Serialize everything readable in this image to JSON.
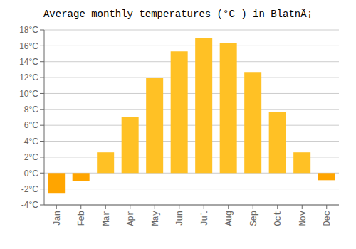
{
  "chart_data": {
    "type": "bar",
    "title": "Average monthly temperatures (°C ) in BlatnÃ¡",
    "categories": [
      "Jan",
      "Feb",
      "Mar",
      "Apr",
      "May",
      "Jun",
      "Jul",
      "Aug",
      "Sep",
      "Oct",
      "Nov",
      "Dec"
    ],
    "values": [
      -2.5,
      -1.0,
      2.6,
      7.0,
      12.0,
      15.3,
      17.0,
      16.3,
      12.7,
      7.7,
      2.6,
      -0.9
    ],
    "colors": [
      "#FFA500",
      "#FFA500",
      "#FFC125",
      "#FFC125",
      "#FFC125",
      "#FFC125",
      "#FFC125",
      "#FFC125",
      "#FFC125",
      "#FFC125",
      "#FFC125",
      "#FFA500"
    ],
    "ylim": [
      -4,
      18
    ],
    "yticks": [
      {
        "value": -4,
        "label": "-4°C"
      },
      {
        "value": -2,
        "label": "-2°C"
      },
      {
        "value": 0,
        "label": "0°C"
      },
      {
        "value": 2,
        "label": "2°C"
      },
      {
        "value": 4,
        "label": "4°C"
      },
      {
        "value": 6,
        "label": "6°C"
      },
      {
        "value": 8,
        "label": "8°C"
      },
      {
        "value": 10,
        "label": "10°C"
      },
      {
        "value": 12,
        "label": "12°C"
      },
      {
        "value": 14,
        "label": "14°C"
      },
      {
        "value": 16,
        "label": "16°C"
      },
      {
        "value": 18,
        "label": "18°C"
      }
    ],
    "grid": true
  }
}
